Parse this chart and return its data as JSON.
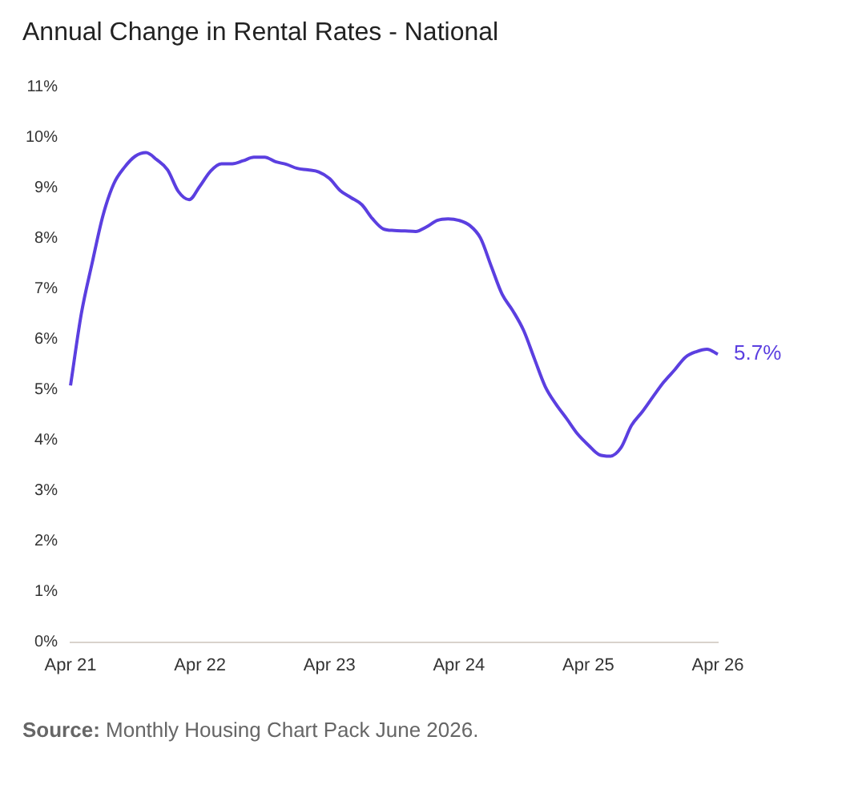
{
  "chart_data": {
    "type": "line",
    "title": "Annual Change in Rental Rates - National",
    "categories": [
      "Apr 21",
      null,
      null,
      null,
      null,
      null,
      null,
      null,
      null,
      null,
      null,
      null,
      "Apr 22",
      null,
      null,
      null,
      null,
      null,
      null,
      null,
      null,
      null,
      null,
      null,
      "Apr 23",
      null,
      null,
      null,
      null,
      null,
      null,
      null,
      null,
      null,
      null,
      null,
      "Apr 24",
      null,
      null,
      null,
      null,
      null,
      null,
      null,
      null,
      null,
      null,
      null,
      "Apr 25",
      null,
      null,
      null,
      null,
      null,
      null,
      null,
      null,
      null,
      null,
      null,
      "Apr 26"
    ],
    "series": [
      {
        "color": "#5b3fe0",
        "values": [
          5.08,
          6.5,
          7.5,
          8.44,
          9.07,
          9.4,
          9.62,
          9.69,
          9.55,
          9.35,
          8.92,
          8.76,
          9.03,
          9.33,
          9.47,
          9.47,
          9.53,
          9.6,
          9.6,
          9.51,
          9.46,
          9.38,
          9.35,
          9.31,
          9.18,
          8.94,
          8.8,
          8.66,
          8.38,
          8.18,
          8.15,
          8.14,
          8.13,
          8.22,
          8.35,
          8.38,
          8.35,
          8.25,
          8.0,
          7.44,
          6.89,
          6.56,
          6.17,
          5.61,
          5.06,
          4.71,
          4.42,
          4.12,
          3.9,
          3.71,
          3.68,
          3.84,
          4.29,
          4.56,
          4.86,
          5.15,
          5.39,
          5.64,
          5.75,
          5.8,
          5.7
        ],
        "value_labels": [
          null,
          null,
          null,
          null,
          null,
          null,
          null,
          null,
          null,
          null,
          null,
          null,
          null,
          null,
          null,
          null,
          null,
          null,
          null,
          null,
          null,
          null,
          null,
          null,
          null,
          null,
          null,
          null,
          null,
          null,
          null,
          null,
          null,
          null,
          null,
          null,
          null,
          null,
          null,
          null,
          null,
          null,
          null,
          null,
          null,
          null,
          null,
          null,
          null,
          null,
          null,
          null,
          null,
          null,
          null,
          null,
          null,
          null,
          null,
          null,
          "5.7%"
        ]
      }
    ],
    "ylim": [
      0,
      11
    ],
    "yticks": [
      {
        "value": 0,
        "label": "0%"
      },
      {
        "value": 1,
        "label": "1%"
      },
      {
        "value": 2,
        "label": "2%"
      },
      {
        "value": 3,
        "label": "3%"
      },
      {
        "value": 4,
        "label": "4%"
      },
      {
        "value": 5,
        "label": "5%"
      },
      {
        "value": 6,
        "label": "6%"
      },
      {
        "value": 7,
        "label": "7%"
      },
      {
        "value": 8,
        "label": "8%"
      },
      {
        "value": 9,
        "label": "9%"
      },
      {
        "value": 10,
        "label": "10%"
      },
      {
        "value": 11,
        "label": "11%"
      }
    ],
    "grid": false,
    "legend": false,
    "marker": "none",
    "line_style": "solid",
    "annotations": [
      "Source: Monthly Housing Chart Pack June 2026."
    ]
  }
}
